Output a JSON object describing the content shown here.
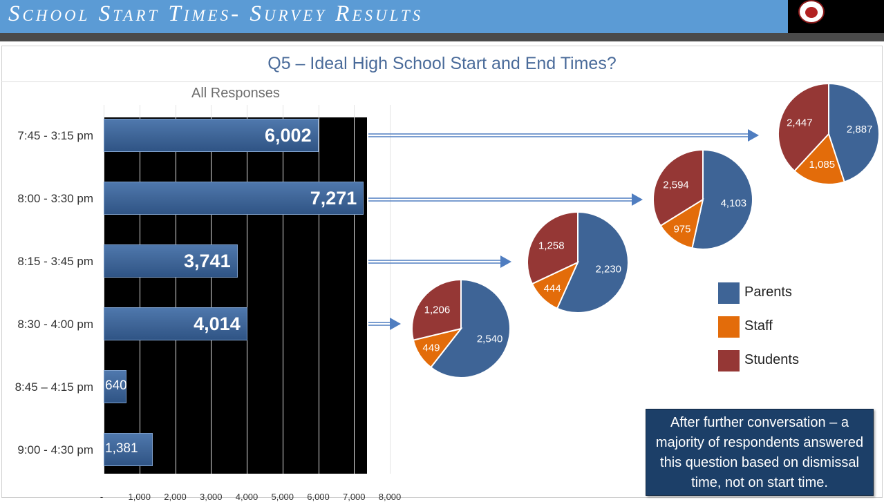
{
  "slide": {
    "title": "School Start Times- Survey Results",
    "question": "Q5 – Ideal High School Start and End Times?",
    "note": "After further conversation – a majority of respondents answered this question based on dismissal time, not on start time."
  },
  "colors": {
    "header": "#5b9bd5",
    "bar": "#3e6496",
    "parents": "#3e6496",
    "staff": "#e36c0a",
    "students": "#953735"
  },
  "legend": [
    {
      "key": "parents",
      "label": "Parents",
      "color": "#3e6496"
    },
    {
      "key": "staff",
      "label": "Staff",
      "color": "#e36c0a"
    },
    {
      "key": "students",
      "label": "Students",
      "color": "#953735"
    }
  ],
  "chart_data": [
    {
      "type": "bar",
      "orientation": "horizontal",
      "title": "All Responses",
      "categories": [
        "7:45 - 3:15 pm",
        "8:00 - 3:30 pm",
        "8:15 - 3:45 pm",
        "8:30 - 4:00 pm",
        "8:45 – 4:15 pm",
        "9:00 - 4:30 pm"
      ],
      "values": [
        6002,
        7271,
        3741,
        4014,
        640,
        1381
      ],
      "value_labels": [
        "6,002",
        "7,271",
        "3,741",
        "4,014",
        "640",
        "1,381"
      ],
      "xlim": [
        0,
        8000
      ],
      "xticks": [
        "-",
        "1,000",
        "2,000",
        "3,000",
        "4,000",
        "5,000",
        "6,000",
        "7,000",
        "8,000"
      ]
    },
    {
      "type": "pie",
      "for_category": "8:30 - 4:00 pm",
      "labels": [
        "Parents",
        "Staff",
        "Students"
      ],
      "values": [
        2540,
        449,
        1206
      ],
      "value_labels": [
        "2,540",
        "449",
        "1,206"
      ]
    },
    {
      "type": "pie",
      "for_category": "8:15 - 3:45 pm",
      "labels": [
        "Parents",
        "Staff",
        "Students"
      ],
      "values": [
        2230,
        444,
        1258
      ],
      "value_labels": [
        "2,230",
        "444",
        "1,258"
      ]
    },
    {
      "type": "pie",
      "for_category": "8:00 - 3:30 pm",
      "labels": [
        "Parents",
        "Staff",
        "Students"
      ],
      "values": [
        4103,
        975,
        2594
      ],
      "value_labels": [
        "4,103",
        "975",
        "2,594"
      ]
    },
    {
      "type": "pie",
      "for_category": "7:45 - 3:15 pm",
      "labels": [
        "Parents",
        "Staff",
        "Students"
      ],
      "values": [
        2887,
        1085,
        2447
      ],
      "value_labels": [
        "2,887",
        "1,085",
        "2,447"
      ]
    }
  ]
}
